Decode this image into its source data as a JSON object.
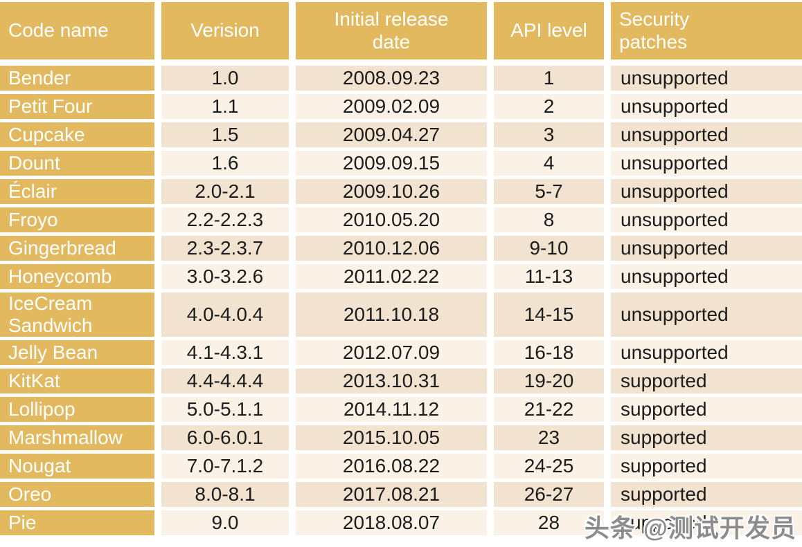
{
  "chart_data": {
    "type": "table",
    "columns": [
      {
        "key": "code-name",
        "label": "Code name"
      },
      {
        "key": "version",
        "label": "Verision"
      },
      {
        "key": "release-date",
        "label": "Initial release date"
      },
      {
        "key": "api-level",
        "label": "API level"
      },
      {
        "key": "security",
        "label": "Security patches"
      }
    ],
    "rows": [
      [
        "Bender",
        "1.0",
        "2008.09.23",
        "1",
        "unsupported"
      ],
      [
        "Petit Four",
        "1.1",
        "2009.02.09",
        "2",
        "unsupported"
      ],
      [
        "Cupcake",
        "1.5",
        "2009.04.27",
        "3",
        "unsupported"
      ],
      [
        "Dount",
        "1.6",
        "2009.09.15",
        "4",
        "unsupported"
      ],
      [
        "Éclair",
        "2.0-2.1",
        "2009.10.26",
        "5-7",
        "unsupported"
      ],
      [
        "Froyo",
        "2.2-2.2.3",
        "2010.05.20",
        "8",
        "unsupported"
      ],
      [
        "Gingerbread",
        "2.3-2.3.7",
        "2010.12.06",
        "9-10",
        "unsupported"
      ],
      [
        "Honeycomb",
        "3.0-3.2.6",
        "2011.02.22",
        "11-13",
        "unsupported"
      ],
      [
        "IceCream Sandwich",
        "4.0-4.0.4",
        "2011.10.18",
        "14-15",
        "unsupported"
      ],
      [
        "Jelly Bean",
        "4.1-4.3.1",
        "2012.07.09",
        "16-18",
        "unsupported"
      ],
      [
        "KitKat",
        "4.4-4.4.4",
        "2013.10.31",
        "19-20",
        "supported"
      ],
      [
        "Lollipop",
        "5.0-5.1.1",
        "2014.11.12",
        "21-22",
        "supported"
      ],
      [
        "Marshmallow",
        "6.0-6.0.1",
        "2015.10.05",
        "23",
        "supported"
      ],
      [
        "Nougat",
        "7.0-7.1.2",
        "2016.08.22",
        "24-25",
        "supported"
      ],
      [
        "Oreo",
        "8.0-8.1",
        "2017.08.21",
        "26-27",
        "supported"
      ],
      [
        "Pie",
        "9.0",
        "2018.08.07",
        "28",
        "supported"
      ]
    ]
  },
  "watermark": {
    "text": "头条 @测试开发员"
  },
  "colors": {
    "header_gold": "#e3b95f",
    "row_odd": "#f2e3d0",
    "row_even": "#faf2e7",
    "separator": "#ffffff",
    "cell_text": "#1c1c1c",
    "header_text": "#ffffff",
    "watermark_gray": "#8c8c8c"
  }
}
